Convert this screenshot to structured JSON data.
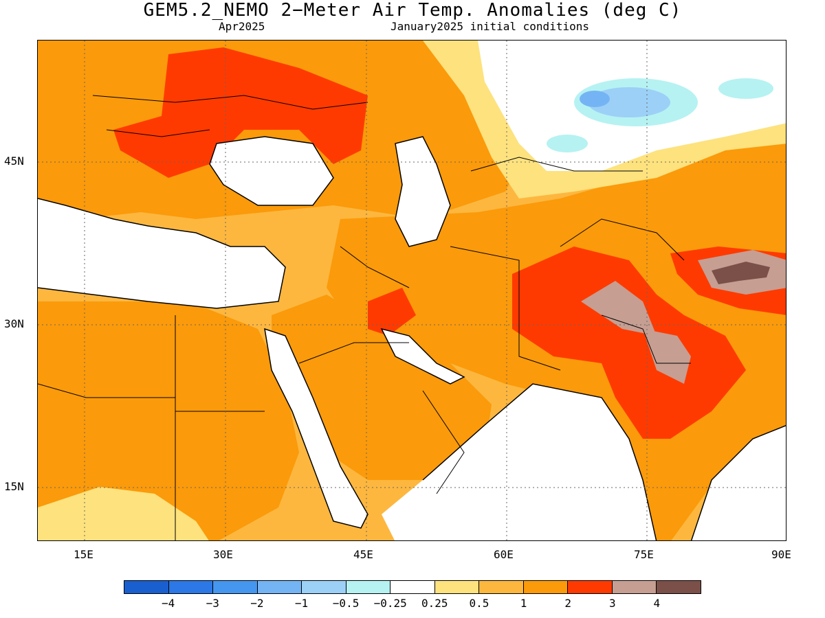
{
  "title": "GEM5.2_NEMO 2−Meter Air Temp. Anomalies (deg C)",
  "subtitle_left": "Apr2025",
  "subtitle_right": "January2025 initial conditions",
  "map": {
    "lon_range": [
      10,
      90
    ],
    "lat_range": [
      10,
      56
    ],
    "lon_ticks": [
      "15E",
      "30E",
      "45E",
      "60E",
      "75E",
      "90E"
    ],
    "lat_ticks": [
      "45N",
      "30N",
      "15N"
    ],
    "grid": "dotted"
  },
  "colorbar": {
    "colors": [
      "#1a5fcf",
      "#2b78e6",
      "#4596ef",
      "#75b4f4",
      "#9cd0f7",
      "#b6f2f2",
      "#ffffff",
      "#fde27e",
      "#fdb73f",
      "#fb9a0a",
      "#ff3a00",
      "#c69e92",
      "#7a5048"
    ],
    "labels": [
      "−4",
      "−3",
      "−2",
      "−1",
      "−0.5",
      "−0.25",
      "0.25",
      "0.5",
      "1",
      "2",
      "3",
      "4"
    ]
  }
}
